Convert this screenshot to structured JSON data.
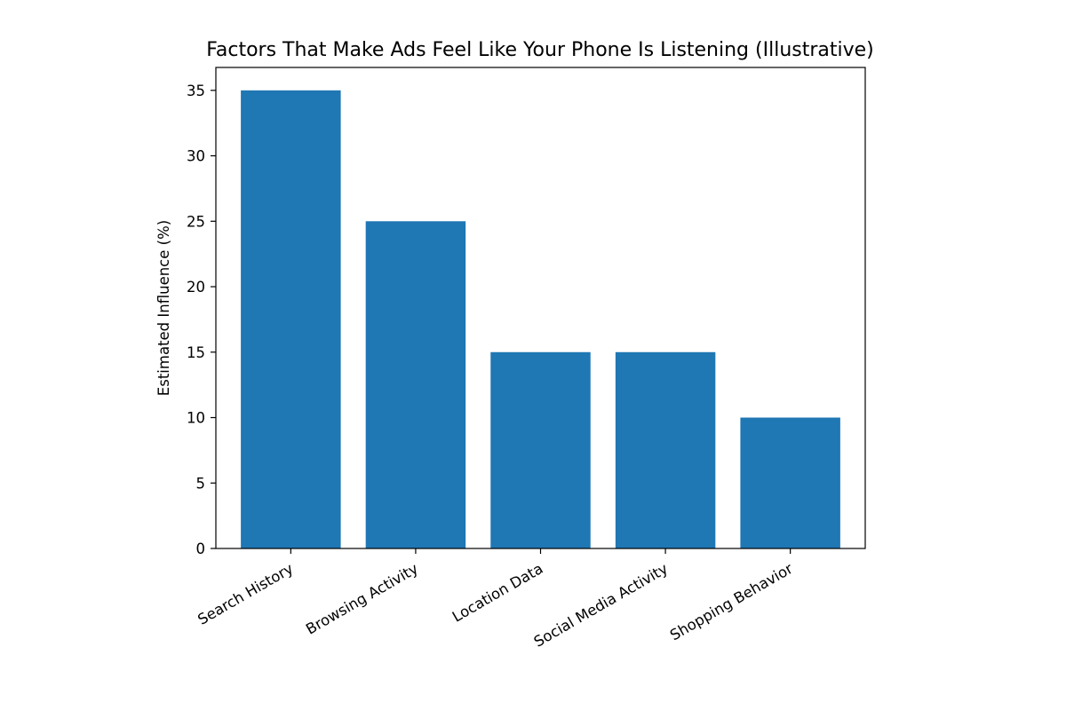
{
  "chart_data": {
    "type": "bar",
    "title": "Factors That Make Ads Feel Like Your Phone Is Listening (Illustrative)",
    "xlabel": "",
    "ylabel": "Estimated Influence (%)",
    "categories": [
      "Search History",
      "Browsing Activity",
      "Location Data",
      "Social Media Activity",
      "Shopping Behavior"
    ],
    "values": [
      35,
      25,
      15,
      15,
      10
    ],
    "ylim": [
      0,
      36.75
    ],
    "yticks": [
      0,
      5,
      10,
      15,
      20,
      25,
      30,
      35
    ],
    "grid": false,
    "legend": null,
    "bar_color": "#1f77b4",
    "xtick_rotation": -30
  }
}
